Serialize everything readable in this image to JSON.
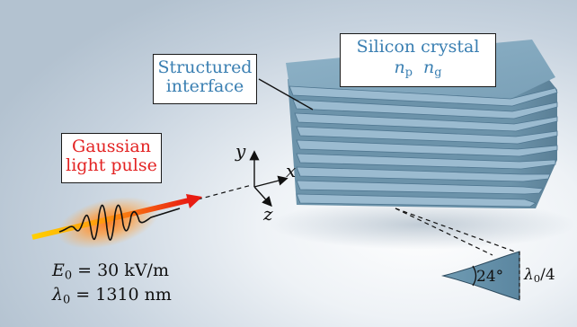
{
  "silicon_box": {
    "line1": "Silicon crystal",
    "np": "n",
    "np_sub": "p",
    "ng": "n",
    "ng_sub": "g"
  },
  "structured_box": {
    "line1": "Structured",
    "line2": "interface"
  },
  "gaussian_box": {
    "line1": "Gaussian",
    "line2": "light pulse"
  },
  "axes": {
    "x": "x",
    "y": "y",
    "z": "z"
  },
  "angle_label": "24°",
  "thickness_label": {
    "sym": "λ",
    "sub": "0",
    "rest": "/4"
  },
  "field_eq": {
    "sym": "E",
    "sub": "0",
    "rest": " = 30 kV/m"
  },
  "wavelength_eq": {
    "sym": "λ",
    "sub": "0",
    "rest": " = 1310 nm"
  },
  "colors": {
    "crystal": "#7aa1b8",
    "label_blue": "#3a7fb2",
    "label_red": "#e32222",
    "arrow": "#e02a1a"
  }
}
